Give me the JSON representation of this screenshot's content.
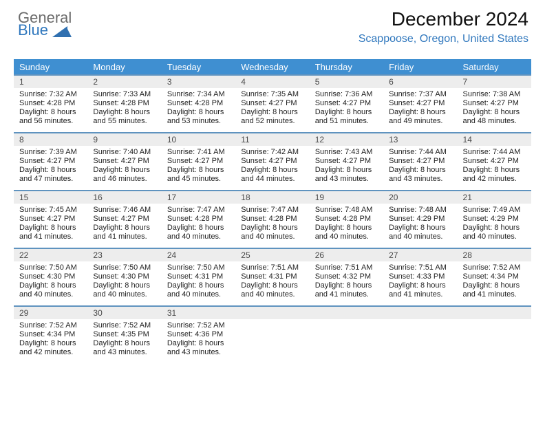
{
  "logo": {
    "line1": "General",
    "line2": "Blue",
    "gray_color": "#6b6b6b",
    "blue_color": "#2f77bd",
    "tri_color": "#2f77bd"
  },
  "header": {
    "title": "December 2024",
    "subtitle": "Scappoose, Oregon, United States",
    "subtitle_color": "#2f77bd"
  },
  "calendar": {
    "header_bg": "#3f8fd1",
    "header_text_color": "#ffffff",
    "daynum_bg": "#ededed",
    "daynum_border": "#5f93bf",
    "day_labels": [
      "Sunday",
      "Monday",
      "Tuesday",
      "Wednesday",
      "Thursday",
      "Friday",
      "Saturday"
    ],
    "weeks": [
      [
        {
          "n": "1",
          "sr": "7:32 AM",
          "ss": "4:28 PM",
          "dh": "8",
          "dm": "56"
        },
        {
          "n": "2",
          "sr": "7:33 AM",
          "ss": "4:28 PM",
          "dh": "8",
          "dm": "55"
        },
        {
          "n": "3",
          "sr": "7:34 AM",
          "ss": "4:28 PM",
          "dh": "8",
          "dm": "53"
        },
        {
          "n": "4",
          "sr": "7:35 AM",
          "ss": "4:27 PM",
          "dh": "8",
          "dm": "52"
        },
        {
          "n": "5",
          "sr": "7:36 AM",
          "ss": "4:27 PM",
          "dh": "8",
          "dm": "51"
        },
        {
          "n": "6",
          "sr": "7:37 AM",
          "ss": "4:27 PM",
          "dh": "8",
          "dm": "49"
        },
        {
          "n": "7",
          "sr": "7:38 AM",
          "ss": "4:27 PM",
          "dh": "8",
          "dm": "48"
        }
      ],
      [
        {
          "n": "8",
          "sr": "7:39 AM",
          "ss": "4:27 PM",
          "dh": "8",
          "dm": "47"
        },
        {
          "n": "9",
          "sr": "7:40 AM",
          "ss": "4:27 PM",
          "dh": "8",
          "dm": "46"
        },
        {
          "n": "10",
          "sr": "7:41 AM",
          "ss": "4:27 PM",
          "dh": "8",
          "dm": "45"
        },
        {
          "n": "11",
          "sr": "7:42 AM",
          "ss": "4:27 PM",
          "dh": "8",
          "dm": "44"
        },
        {
          "n": "12",
          "sr": "7:43 AM",
          "ss": "4:27 PM",
          "dh": "8",
          "dm": "43"
        },
        {
          "n": "13",
          "sr": "7:44 AM",
          "ss": "4:27 PM",
          "dh": "8",
          "dm": "43"
        },
        {
          "n": "14",
          "sr": "7:44 AM",
          "ss": "4:27 PM",
          "dh": "8",
          "dm": "42"
        }
      ],
      [
        {
          "n": "15",
          "sr": "7:45 AM",
          "ss": "4:27 PM",
          "dh": "8",
          "dm": "41"
        },
        {
          "n": "16",
          "sr": "7:46 AM",
          "ss": "4:27 PM",
          "dh": "8",
          "dm": "41"
        },
        {
          "n": "17",
          "sr": "7:47 AM",
          "ss": "4:28 PM",
          "dh": "8",
          "dm": "40"
        },
        {
          "n": "18",
          "sr": "7:47 AM",
          "ss": "4:28 PM",
          "dh": "8",
          "dm": "40"
        },
        {
          "n": "19",
          "sr": "7:48 AM",
          "ss": "4:28 PM",
          "dh": "8",
          "dm": "40"
        },
        {
          "n": "20",
          "sr": "7:48 AM",
          "ss": "4:29 PM",
          "dh": "8",
          "dm": "40"
        },
        {
          "n": "21",
          "sr": "7:49 AM",
          "ss": "4:29 PM",
          "dh": "8",
          "dm": "40"
        }
      ],
      [
        {
          "n": "22",
          "sr": "7:50 AM",
          "ss": "4:30 PM",
          "dh": "8",
          "dm": "40"
        },
        {
          "n": "23",
          "sr": "7:50 AM",
          "ss": "4:30 PM",
          "dh": "8",
          "dm": "40"
        },
        {
          "n": "24",
          "sr": "7:50 AM",
          "ss": "4:31 PM",
          "dh": "8",
          "dm": "40"
        },
        {
          "n": "25",
          "sr": "7:51 AM",
          "ss": "4:31 PM",
          "dh": "8",
          "dm": "40"
        },
        {
          "n": "26",
          "sr": "7:51 AM",
          "ss": "4:32 PM",
          "dh": "8",
          "dm": "41"
        },
        {
          "n": "27",
          "sr": "7:51 AM",
          "ss": "4:33 PM",
          "dh": "8",
          "dm": "41"
        },
        {
          "n": "28",
          "sr": "7:52 AM",
          "ss": "4:34 PM",
          "dh": "8",
          "dm": "41"
        }
      ],
      [
        {
          "n": "29",
          "sr": "7:52 AM",
          "ss": "4:34 PM",
          "dh": "8",
          "dm": "42"
        },
        {
          "n": "30",
          "sr": "7:52 AM",
          "ss": "4:35 PM",
          "dh": "8",
          "dm": "43"
        },
        {
          "n": "31",
          "sr": "7:52 AM",
          "ss": "4:36 PM",
          "dh": "8",
          "dm": "43"
        },
        {
          "empty": true
        },
        {
          "empty": true
        },
        {
          "empty": true
        },
        {
          "empty": true
        }
      ]
    ],
    "labels": {
      "sunrise_prefix": "Sunrise: ",
      "sunset_prefix": "Sunset: ",
      "daylight_prefix": "Daylight: ",
      "hours_word": " hours",
      "and_word": "and ",
      "minutes_word": " minutes."
    }
  }
}
